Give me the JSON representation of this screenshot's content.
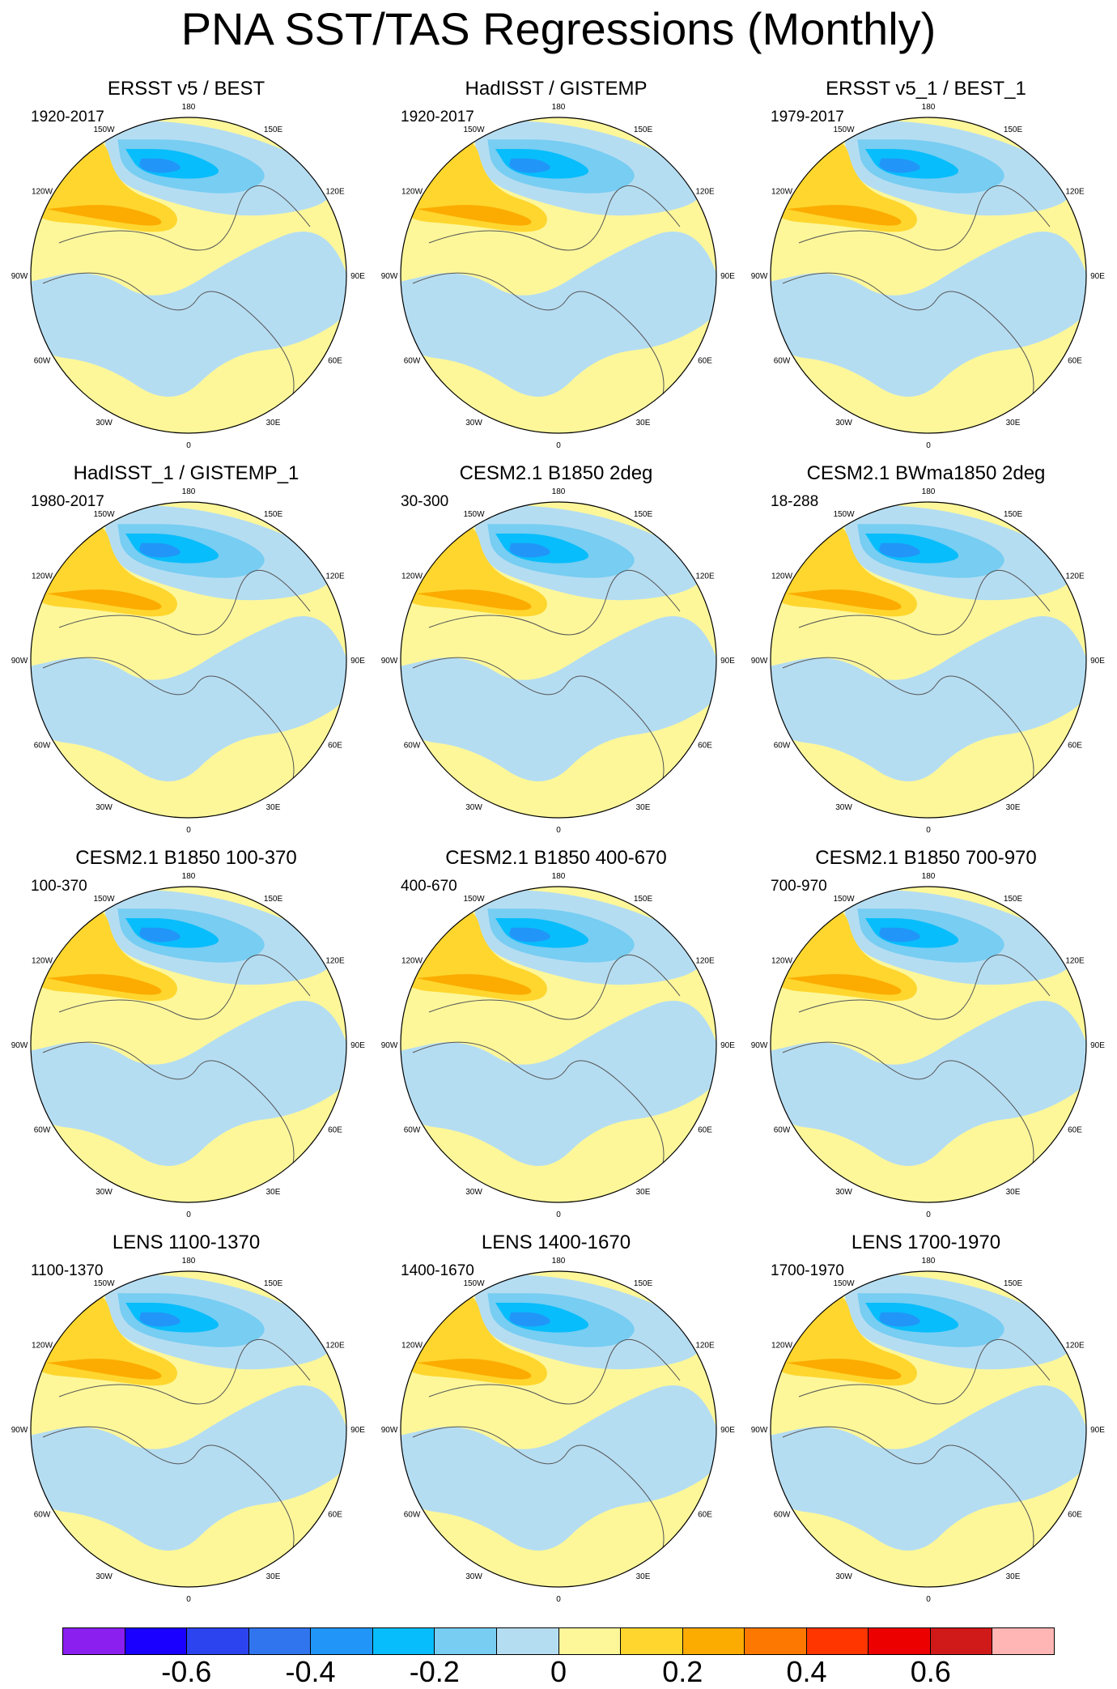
{
  "title": "PNA SST/TAS Regressions (Monthly)",
  "longitude_labels": [
    "180",
    "150E",
    "120E",
    "90E",
    "60E",
    "30E",
    "0",
    "30W",
    "60W",
    "90W",
    "120W",
    "150W"
  ],
  "panels": [
    {
      "title": "ERSST v5 / BEST",
      "period": "1920-2017"
    },
    {
      "title": "HadISST / GISTEMP",
      "period": "1920-2017"
    },
    {
      "title": "ERSST v5_1 / BEST_1",
      "period": "1979-2017"
    },
    {
      "title": "HadISST_1 / GISTEMP_1",
      "period": "1980-2017"
    },
    {
      "title": "CESM2.1 B1850 2deg",
      "period": "30-300"
    },
    {
      "title": "CESM2.1 BWma1850 2deg",
      "period": "18-288"
    },
    {
      "title": "CESM2.1 B1850 100-370",
      "period": "100-370"
    },
    {
      "title": "CESM2.1 B1850 400-670",
      "period": "400-670"
    },
    {
      "title": "CESM2.1 B1850 700-970",
      "period": "700-970"
    },
    {
      "title": "LENS 1100-1370",
      "period": "1100-1370"
    },
    {
      "title": "LENS 1400-1670",
      "period": "1400-1670"
    },
    {
      "title": "LENS 1700-1970",
      "period": "1700-1970"
    }
  ],
  "colorbar": {
    "colors": [
      "#8a1ff0",
      "#1a00ff",
      "#2b44ef",
      "#3075ee",
      "#2196f8",
      "#08bdfb",
      "#77cdf2",
      "#b5ddf2",
      "#fdf79a",
      "#fed62e",
      "#fcab00",
      "#fc7800",
      "#ff3600",
      "#ec0000",
      "#cf1a19",
      "#ffb6b4"
    ],
    "tick_labels": [
      "-0.6",
      "-0.4",
      "-0.2",
      "0",
      "0.2",
      "0.4",
      "0.6"
    ],
    "tick_values": [
      -0.6,
      -0.4,
      -0.2,
      0,
      0.2,
      0.4,
      0.6
    ],
    "min": -0.8,
    "max": 0.8
  },
  "map_colors": {
    "warm_light": "#fdf79a",
    "warm_mid": "#fed62e",
    "warm_strong": "#fcab00",
    "cool_light": "#b5ddf2",
    "cool_mid": "#77cdf2",
    "cool_strong": "#08bdfb",
    "cool_core": "#2196f8",
    "ice": "#ffffff"
  }
}
